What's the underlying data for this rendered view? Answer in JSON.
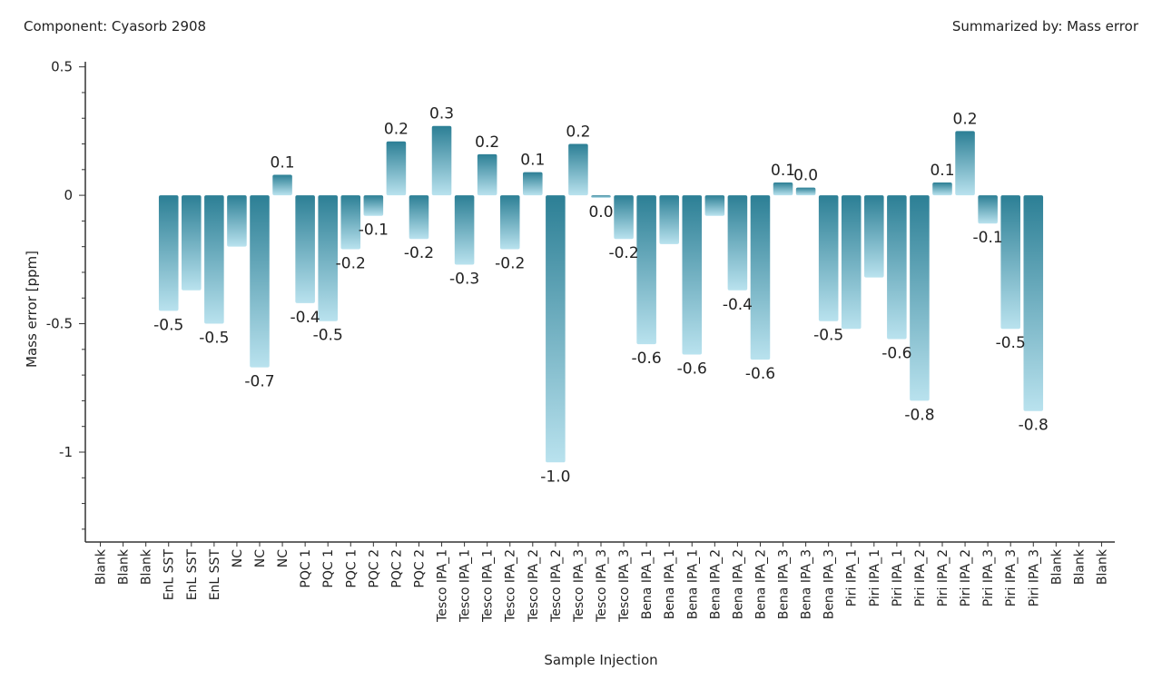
{
  "header": {
    "component": "Component: Cyasorb 2908",
    "summary": "Summarized by: Mass error"
  },
  "colors": {
    "bar_top": "#2c7f95",
    "bar_bottom": "#b9e2ee",
    "axis": "#333333"
  },
  "chart_data": {
    "type": "bar",
    "xlabel": "Sample Injection",
    "ylabel": "Mass error [ppm]",
    "ylim": [
      -1.35,
      0.52
    ],
    "yticks": [
      0.5,
      0,
      -0.5,
      -1
    ],
    "ytick_labels": [
      "0.5",
      "0",
      "-0.5",
      "-1"
    ],
    "categories": [
      "Blank",
      "Blank",
      "Blank",
      "EnL SST",
      "EnL SST",
      "EnL SST",
      "NC",
      "NC",
      "NC",
      "PQC 1",
      "PQC 1",
      "PQC 1",
      "PQC 2",
      "PQC 2",
      "PQC 2",
      "Tesco IPA_1",
      "Tesco IPA_1",
      "Tesco IPA_1",
      "Tesco IPA_2",
      "Tesco IPA_2",
      "Tesco IPA_2",
      "Tesco IPA_3",
      "Tesco IPA_3",
      "Tesco IPA_3",
      "Bena IPA_1",
      "Bena IPA_1",
      "Bena IPA_1",
      "Bena IPA_2",
      "Bena IPA_2",
      "Bena IPA_2",
      "Bena IPA_3",
      "Bena IPA_3",
      "Bena IPA_3",
      "Piri IPA_1",
      "Piri IPA_1",
      "Piri IPA_1",
      "Piri IPA_2",
      "Piri IPA_2",
      "Piri IPA_2",
      "Piri IPA_3",
      "Piri IPA_3",
      "Piri IPA_3",
      "Blank",
      "Blank",
      "Blank"
    ],
    "values": [
      null,
      null,
      null,
      -0.45,
      -0.37,
      -0.5,
      -0.2,
      -0.67,
      0.08,
      -0.42,
      -0.49,
      -0.21,
      -0.08,
      0.21,
      -0.17,
      0.27,
      -0.27,
      0.16,
      -0.21,
      0.09,
      -1.04,
      0.2,
      -0.01,
      -0.17,
      -0.58,
      -0.19,
      -0.62,
      -0.08,
      -0.37,
      -0.64,
      0.05,
      0.03,
      -0.49,
      -0.52,
      -0.32,
      -0.56,
      -0.8,
      0.05,
      0.25,
      -0.11,
      -0.52,
      -0.84,
      null,
      null,
      null
    ],
    "data_labels": [
      "",
      "",
      "",
      "-0.5",
      "",
      "-0.5",
      "",
      "-0.7",
      "0.1",
      "-0.4",
      "-0.5",
      "-0.2",
      "-0.1",
      "0.2",
      "-0.2",
      "0.3",
      "-0.3",
      "0.2",
      "-0.2",
      "0.1",
      "-1.0",
      "0.2",
      "0.0",
      "-0.2",
      "-0.6",
      "",
      "-0.6",
      "",
      "-0.4",
      "-0.6",
      "0.1",
      "0.0",
      "-0.5",
      "",
      "",
      "-0.6",
      "-0.8",
      "0.1",
      "0.2",
      "-0.1",
      "-0.5",
      "-0.8",
      "",
      "",
      ""
    ]
  }
}
